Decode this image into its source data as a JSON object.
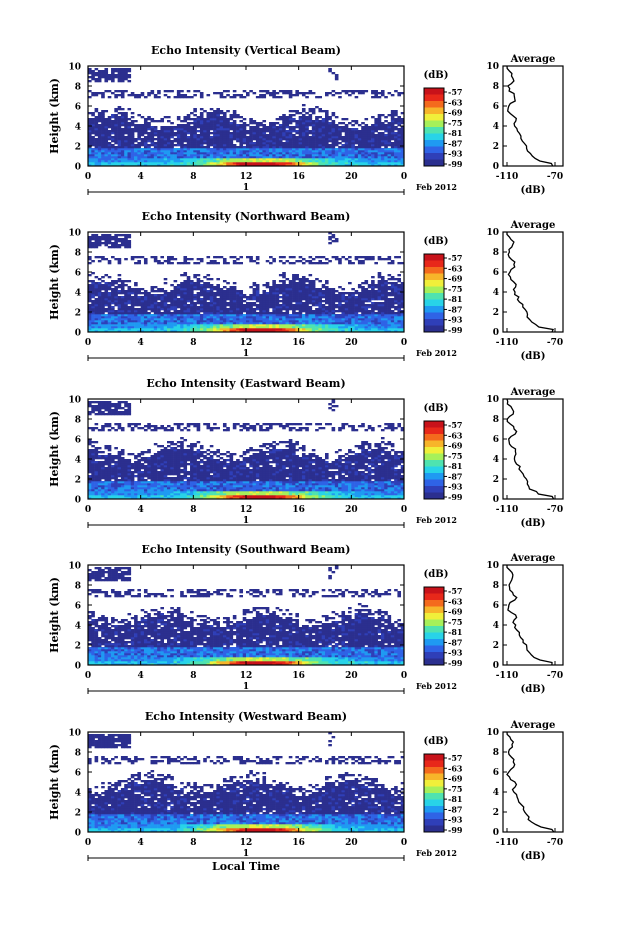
{
  "colors": {
    "scale": [
      "#2b2f8f",
      "#2f3fb8",
      "#2f63e6",
      "#1f9af2",
      "#28d3e8",
      "#4fe3b0",
      "#a6f05a",
      "#f0ef3a",
      "#f7b52a",
      "#f46a1d",
      "#e8281a",
      "#c8121a"
    ]
  },
  "chart_data": [
    {
      "type": "heatmap",
      "title": "Echo Intensity (Vertical Beam)",
      "ylabel": "Height (km)",
      "xlabel": "",
      "x_ticks": [
        "0",
        "4",
        "8",
        "12",
        "16",
        "20",
        "0"
      ],
      "y_ticks": [
        "0",
        "2",
        "4",
        "6",
        "8",
        "10"
      ],
      "xlim": [
        0,
        24
      ],
      "ylim": [
        0,
        10
      ],
      "date_marker": "1",
      "date_label": "Feb 2012",
      "colorbar": {
        "unit": "(dB)",
        "ticks": [
          "-57",
          "-63",
          "-69",
          "-75",
          "-81",
          "-87",
          "-93",
          "-99"
        ]
      },
      "average": {
        "title": "Average",
        "xlabel": "(dB)",
        "x_ticks": [
          "-110",
          "-70"
        ],
        "y_ticks": [
          "0",
          "2",
          "4",
          "6",
          "8",
          "10"
        ]
      }
    },
    {
      "type": "heatmap",
      "title": "Echo Intensity (Northward Beam)",
      "ylabel": "Height (km)",
      "xlabel": "",
      "x_ticks": [
        "0",
        "4",
        "8",
        "12",
        "16",
        "20",
        "0"
      ],
      "y_ticks": [
        "0",
        "2",
        "4",
        "6",
        "8",
        "10"
      ],
      "xlim": [
        0,
        24
      ],
      "ylim": [
        0,
        10
      ],
      "date_marker": "1",
      "date_label": "Feb 2012",
      "colorbar": {
        "unit": "(dB)",
        "ticks": [
          "-57",
          "-63",
          "-69",
          "-75",
          "-81",
          "-87",
          "-93",
          "-99"
        ]
      },
      "average": {
        "title": "Average",
        "xlabel": "(dB)",
        "x_ticks": [
          "-110",
          "-70"
        ],
        "y_ticks": [
          "0",
          "2",
          "4",
          "6",
          "8",
          "10"
        ]
      }
    },
    {
      "type": "heatmap",
      "title": "Echo Intensity (Eastward Beam)",
      "ylabel": "Height (km)",
      "xlabel": "",
      "x_ticks": [
        "0",
        "4",
        "8",
        "12",
        "16",
        "20",
        "0"
      ],
      "y_ticks": [
        "0",
        "2",
        "4",
        "6",
        "8",
        "10"
      ],
      "xlim": [
        0,
        24
      ],
      "ylim": [
        0,
        10
      ],
      "date_marker": "1",
      "date_label": "Feb 2012",
      "colorbar": {
        "unit": "(dB)",
        "ticks": [
          "-57",
          "-63",
          "-69",
          "-75",
          "-81",
          "-87",
          "-93",
          "-99"
        ]
      },
      "average": {
        "title": "Average",
        "xlabel": "(dB)",
        "x_ticks": [
          "-110",
          "-70"
        ],
        "y_ticks": [
          "0",
          "2",
          "4",
          "6",
          "8",
          "10"
        ]
      }
    },
    {
      "type": "heatmap",
      "title": "Echo Intensity (Southward Beam)",
      "ylabel": "Height (km)",
      "xlabel": "",
      "x_ticks": [
        "0",
        "4",
        "8",
        "12",
        "16",
        "20",
        "0"
      ],
      "y_ticks": [
        "0",
        "2",
        "4",
        "6",
        "8",
        "10"
      ],
      "xlim": [
        0,
        24
      ],
      "ylim": [
        0,
        10
      ],
      "date_marker": "1",
      "date_label": "Feb 2012",
      "colorbar": {
        "unit": "(dB)",
        "ticks": [
          "-57",
          "-63",
          "-69",
          "-75",
          "-81",
          "-87",
          "-93",
          "-99"
        ]
      },
      "average": {
        "title": "Average",
        "xlabel": "(dB)",
        "x_ticks": [
          "-110",
          "-70"
        ],
        "y_ticks": [
          "0",
          "2",
          "4",
          "6",
          "8",
          "10"
        ]
      }
    },
    {
      "type": "heatmap",
      "title": "Echo Intensity (Westward Beam)",
      "ylabel": "Height (km)",
      "xlabel": "Local Time",
      "x_ticks": [
        "0",
        "4",
        "8",
        "12",
        "16",
        "20",
        "0"
      ],
      "y_ticks": [
        "0",
        "2",
        "4",
        "6",
        "8",
        "10"
      ],
      "xlim": [
        0,
        24
      ],
      "ylim": [
        0,
        10
      ],
      "date_marker": "1",
      "date_label": "Feb 2012",
      "colorbar": {
        "unit": "(dB)",
        "ticks": [
          "-57",
          "-63",
          "-69",
          "-75",
          "-81",
          "-87",
          "-93",
          "-99"
        ]
      },
      "average": {
        "title": "Average",
        "xlabel": "(dB)",
        "x_ticks": [
          "-110",
          "-70"
        ],
        "y_ticks": [
          "0",
          "2",
          "4",
          "6",
          "8",
          "10"
        ]
      }
    }
  ]
}
